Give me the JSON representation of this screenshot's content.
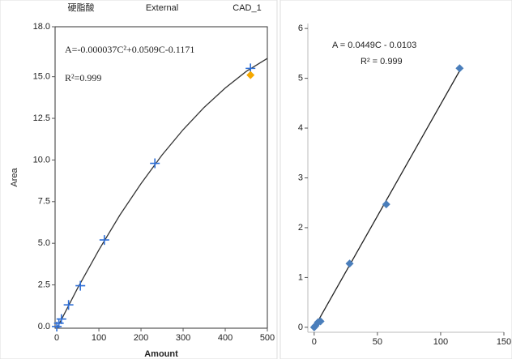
{
  "chart_data": [
    {
      "type": "scatter",
      "titles": [
        "硬脂酸",
        "External",
        "CAD_1"
      ],
      "xlabel": "Amount",
      "ylabel": "Area",
      "annotations": [
        "A=-0.000037C²+0.0509C-0.1171",
        "R²=0.999"
      ],
      "xlim": [
        -4,
        500
      ],
      "ylim": [
        -0.1,
        18
      ],
      "xticks": [
        0,
        100,
        200,
        300,
        400,
        500
      ],
      "yticks": [
        {
          "value": 0,
          "label": "0.0"
        },
        {
          "value": 2.5,
          "label": "2.5"
        },
        {
          "value": 5,
          "label": "5.0"
        },
        {
          "value": 7.5,
          "label": "7.5"
        },
        {
          "value": 10,
          "label": "10.0"
        },
        {
          "value": 12.5,
          "label": "12.5"
        },
        {
          "value": 15,
          "label": "15.0"
        },
        {
          "value": 18,
          "label": "18.0"
        }
      ],
      "series": [
        {
          "marker": "line",
          "color": "#333333",
          "x": [
            0,
            50,
            100,
            150,
            200,
            250,
            300,
            350,
            400,
            450,
            500
          ],
          "values": [
            -0.12,
            2.33,
            4.6,
            6.7,
            8.58,
            10.3,
            11.82,
            13.16,
            14.32,
            15.32,
            16.1
          ]
        },
        {
          "marker": "plus",
          "color": "#2f6fd6",
          "x": [
            0,
            5,
            11,
            28,
            56,
            113,
            233,
            460
          ],
          "values": [
            0,
            0.2,
            0.45,
            1.3,
            2.45,
            5.2,
            9.8,
            15.5
          ]
        },
        {
          "marker": "diamond",
          "color": "#f5a800",
          "x": [
            460
          ],
          "values": [
            15.1
          ]
        }
      ]
    },
    {
      "type": "scatter",
      "annotations": [
        "A = 0.0449C - 0.0103",
        "R² = 0.999"
      ],
      "xlim": [
        -5,
        150
      ],
      "ylim": [
        -0.1,
        6.1
      ],
      "xticks": [
        0,
        50,
        100,
        150
      ],
      "yticks": [
        0,
        1,
        2,
        3,
        4,
        5,
        6
      ],
      "series": [
        {
          "marker": "line",
          "color": "#222222",
          "x": [
            0,
            115
          ],
          "values": [
            -0.01,
            5.15
          ]
        },
        {
          "marker": "diamond",
          "color": "#4a7ebb",
          "x": [
            0,
            1,
            3,
            5,
            28,
            57,
            115
          ],
          "values": [
            0,
            0.03,
            0.1,
            0.12,
            1.28,
            2.47,
            5.2
          ]
        }
      ]
    }
  ]
}
